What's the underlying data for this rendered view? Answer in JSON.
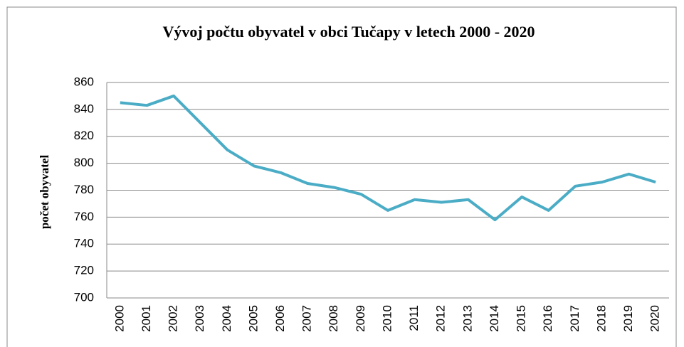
{
  "chart_data": {
    "type": "line",
    "title": "Vývoj počtu obyvatel v obci Tučapy v letech 2000 - 2020",
    "y_label": "počet obyvatel",
    "categories": [
      "2000",
      "2001",
      "2002",
      "2003",
      "2004",
      "2005",
      "2006",
      "2007",
      "2008",
      "2009",
      "2010",
      "2011",
      "2012",
      "2013",
      "2014",
      "2015",
      "2016",
      "2017",
      "2018",
      "2019",
      "2020"
    ],
    "values": [
      845,
      843,
      850,
      830,
      810,
      798,
      793,
      785,
      782,
      777,
      765,
      773,
      771,
      773,
      758,
      775,
      765,
      783,
      786,
      792,
      786
    ],
    "color": "#4bacc6",
    "ylim": [
      700,
      860
    ],
    "yticks": [
      700,
      720,
      740,
      760,
      780,
      800,
      820,
      840,
      860
    ],
    "grid": true
  }
}
